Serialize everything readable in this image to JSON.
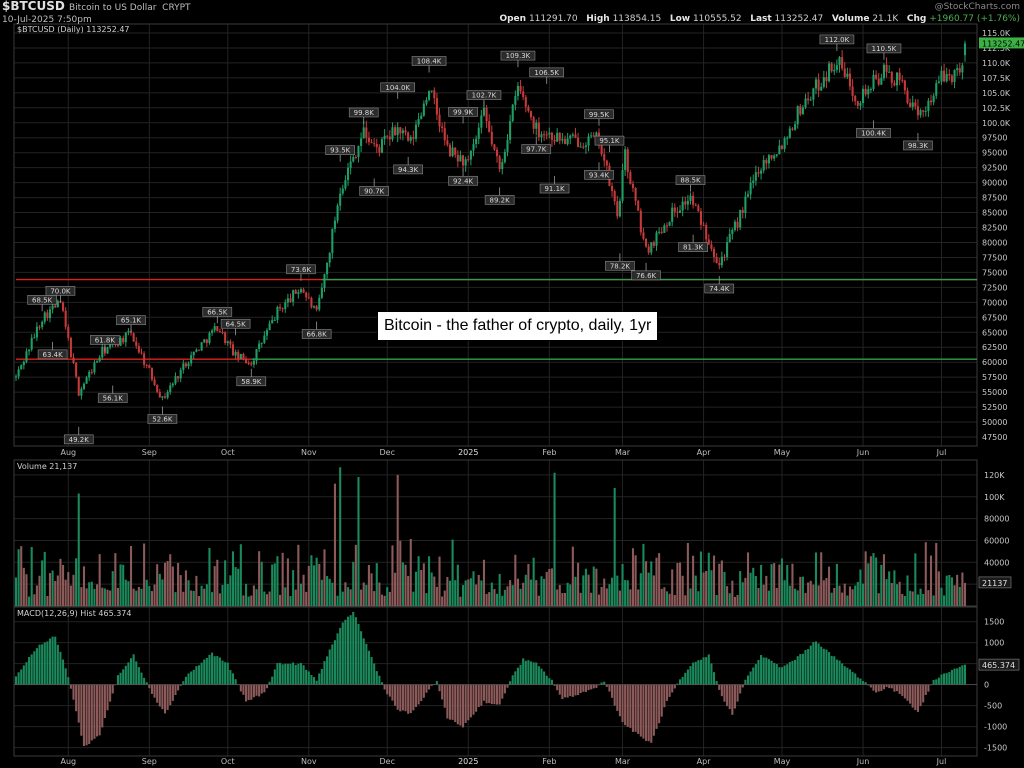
{
  "header": {
    "symbol": "$BTCUSD",
    "description": "Bitcoin to US Dollar",
    "exchange": "CRYPT",
    "datetime": "10-Jul-2025 7:50pm",
    "source": "@StockCharts.com",
    "open_label": "Open",
    "open": "111291.70",
    "high_label": "High",
    "high": "113854.15",
    "low_label": "Low",
    "low": "110555.52",
    "last_label": "Last",
    "last": "113252.47",
    "volume_label": "Volume",
    "volume": "21.1K",
    "chg_label": "Chg",
    "chg": "+1960.77 (+1.76%)"
  },
  "annotation": "Bitcoin - the father of crypto, daily, 1yr",
  "colors": {
    "up": "#1f9e66",
    "down": "#c63a3a",
    "up_vol": "#1a8a5c",
    "down_vol": "#8d5a5a",
    "hline_red": "#e02020",
    "hline_green": "#2aa24a",
    "grid": "#232323",
    "price_label_bg": "#ffffff",
    "last_tag_bg": "#3cb043"
  },
  "chart_data": [
    {
      "type": "candlestick",
      "panel": "price",
      "legend": "$BTCUSD (Daily) 113252.47",
      "last_label": "113252.47",
      "x_labels": [
        "Aug",
        "Sep",
        "Oct",
        "Nov",
        "Dec",
        "2025",
        "Feb",
        "Mar",
        "Apr",
        "May",
        "Jun",
        "Jul"
      ],
      "x_label_dates": [
        "2024-08-01",
        "2024-09-01",
        "2024-10-01",
        "2024-11-01",
        "2024-12-01",
        "2025-01-01",
        "2025-02-01",
        "2025-03-01",
        "2025-04-01",
        "2025-05-01",
        "2025-06-01",
        "2025-07-01"
      ],
      "date_range": [
        "2024-07-12",
        "2025-07-10"
      ],
      "ylim": [
        46000,
        116500
      ],
      "y_ticks": [
        47500,
        50000,
        52500,
        55000,
        57500,
        60000,
        62500,
        65000,
        67500,
        70000,
        72500,
        75000,
        77500,
        80000,
        82500,
        85000,
        87500,
        90000,
        92500,
        95000,
        97500,
        100000,
        102500,
        105000,
        107500,
        110000,
        112500,
        115000
      ],
      "y_tick_labels": [
        "47500",
        "50000",
        "52500",
        "55000",
        "57500",
        "60000",
        "62500",
        "65000",
        "67500",
        "70000",
        "72500",
        "75000",
        "77500",
        "80000",
        "82500",
        "85000",
        "87500",
        "90000",
        "92500",
        "95000",
        "97500",
        "100.0K",
        "102.5K",
        "105.0K",
        "107.5K",
        "110.0K",
        "112.5K",
        "115.0K"
      ],
      "approx_close_path": [
        [
          "2024-07-12",
          57500
        ],
        [
          "2024-07-22",
          67500
        ],
        [
          "2024-07-29",
          70000
        ],
        [
          "2024-08-05",
          55000
        ],
        [
          "2024-08-14",
          61800
        ],
        [
          "2024-08-25",
          64800
        ],
        [
          "2024-09-06",
          53800
        ],
        [
          "2024-09-15",
          60000
        ],
        [
          "2024-09-27",
          66000
        ],
        [
          "2024-10-04",
          61000
        ],
        [
          "2024-10-10",
          60000
        ],
        [
          "2024-10-20",
          68500
        ],
        [
          "2024-10-29",
          72500
        ],
        [
          "2024-11-04",
          68000
        ],
        [
          "2024-11-08",
          76500
        ],
        [
          "2024-11-13",
          89000
        ],
        [
          "2024-11-22",
          98500
        ],
        [
          "2024-11-27",
          95500
        ],
        [
          "2024-12-05",
          99000
        ],
        [
          "2024-12-10",
          96500
        ],
        [
          "2024-12-17",
          106000
        ],
        [
          "2024-12-24",
          95500
        ],
        [
          "2025-01-01",
          93000
        ],
        [
          "2025-01-07",
          101500
        ],
        [
          "2025-01-13",
          92000
        ],
        [
          "2025-01-20",
          106000
        ],
        [
          "2025-01-27",
          99000
        ],
        [
          "2025-02-07",
          97000
        ],
        [
          "2025-02-20",
          97200
        ],
        [
          "2025-02-27",
          84500
        ],
        [
          "2025-03-02",
          94500
        ],
        [
          "2025-03-10",
          78500
        ],
        [
          "2025-03-20",
          85000
        ],
        [
          "2025-03-27",
          87500
        ],
        [
          "2025-04-07",
          76500
        ],
        [
          "2025-04-15",
          84500
        ],
        [
          "2025-04-22",
          92500
        ],
        [
          "2025-05-01",
          96500
        ],
        [
          "2025-05-08",
          102500
        ],
        [
          "2025-05-22",
          110500
        ],
        [
          "2025-05-30",
          104000
        ],
        [
          "2025-06-09",
          108500
        ],
        [
          "2025-06-16",
          106500
        ],
        [
          "2025-06-22",
          100500
        ],
        [
          "2025-07-01",
          107500
        ],
        [
          "2025-07-08",
          108500
        ],
        [
          "2025-07-10",
          113250
        ]
      ],
      "pivot_labels": [
        {
          "date": "2024-07-22",
          "text": "68.5K",
          "value": 68500,
          "pos": "above"
        },
        {
          "date": "2024-07-29",
          "text": "70.0K",
          "value": 70000,
          "pos": "above"
        },
        {
          "date": "2024-07-26",
          "text": "63.4K",
          "value": 63400,
          "pos": "below"
        },
        {
          "date": "2024-08-05",
          "text": "49.2K",
          "value": 49200,
          "pos": "below"
        },
        {
          "date": "2024-08-15",
          "text": "61.8K",
          "value": 61800,
          "pos": "above"
        },
        {
          "date": "2024-08-18",
          "text": "56.1K",
          "value": 56100,
          "pos": "below"
        },
        {
          "date": "2024-08-25",
          "text": "65.1K",
          "value": 65100,
          "pos": "above"
        },
        {
          "date": "2024-09-06",
          "text": "52.6K",
          "value": 52600,
          "pos": "below"
        },
        {
          "date": "2024-09-27",
          "text": "66.5K",
          "value": 66500,
          "pos": "above"
        },
        {
          "date": "2024-10-04",
          "text": "64.5K",
          "value": 64500,
          "pos": "above"
        },
        {
          "date": "2024-10-10",
          "text": "58.9K",
          "value": 58900,
          "pos": "below"
        },
        {
          "date": "2024-10-29",
          "text": "73.6K",
          "value": 73600,
          "pos": "above"
        },
        {
          "date": "2024-11-04",
          "text": "66.8K",
          "value": 66800,
          "pos": "below"
        },
        {
          "date": "2024-11-13",
          "text": "93.5K",
          "value": 93500,
          "pos": "above"
        },
        {
          "date": "2024-11-22",
          "text": "99.8K",
          "value": 99800,
          "pos": "above"
        },
        {
          "date": "2024-11-26",
          "text": "90.7K",
          "value": 90700,
          "pos": "below"
        },
        {
          "date": "2024-12-05",
          "text": "104.0K",
          "value": 104000,
          "pos": "above"
        },
        {
          "date": "2024-12-09",
          "text": "94.3K",
          "value": 94300,
          "pos": "below"
        },
        {
          "date": "2024-12-17",
          "text": "108.4K",
          "value": 108400,
          "pos": "above"
        },
        {
          "date": "2024-12-30",
          "text": "99.9K",
          "value": 99900,
          "pos": "above"
        },
        {
          "date": "2024-12-30",
          "text": "92.4K",
          "value": 92400,
          "pos": "below"
        },
        {
          "date": "2025-01-07",
          "text": "102.7K",
          "value": 102700,
          "pos": "above"
        },
        {
          "date": "2025-01-13",
          "text": "89.2K",
          "value": 89200,
          "pos": "below"
        },
        {
          "date": "2025-01-20",
          "text": "109.3K",
          "value": 109300,
          "pos": "above"
        },
        {
          "date": "2025-01-31",
          "text": "106.5K",
          "value": 106500,
          "pos": "above"
        },
        {
          "date": "2025-01-27",
          "text": "97.7K",
          "value": 97700,
          "pos": "below"
        },
        {
          "date": "2025-02-03",
          "text": "91.1K",
          "value": 91100,
          "pos": "below"
        },
        {
          "date": "2025-02-20",
          "text": "99.5K",
          "value": 99500,
          "pos": "above"
        },
        {
          "date": "2025-02-24",
          "text": "95.1K",
          "value": 95100,
          "pos": "above"
        },
        {
          "date": "2025-02-20",
          "text": "93.4K",
          "value": 93400,
          "pos": "below"
        },
        {
          "date": "2025-02-28",
          "text": "78.2K",
          "value": 78200,
          "pos": "below"
        },
        {
          "date": "2025-03-10",
          "text": "76.6K",
          "value": 76600,
          "pos": "below"
        },
        {
          "date": "2025-03-27",
          "text": "88.5K",
          "value": 88500,
          "pos": "above"
        },
        {
          "date": "2025-03-28",
          "text": "81.3K",
          "value": 81300,
          "pos": "below"
        },
        {
          "date": "2025-04-07",
          "text": "74.4K",
          "value": 74400,
          "pos": "below"
        },
        {
          "date": "2025-05-22",
          "text": "112.0K",
          "value": 112000,
          "pos": "above"
        },
        {
          "date": "2025-06-09",
          "text": "110.5K",
          "value": 110500,
          "pos": "above"
        },
        {
          "date": "2025-06-05",
          "text": "100.4K",
          "value": 100400,
          "pos": "below"
        },
        {
          "date": "2025-06-22",
          "text": "98.3K",
          "value": 98300,
          "pos": "below"
        }
      ],
      "horizontal_lines": [
        {
          "value": 73800,
          "color": "red",
          "start": "2024-07-12"
        },
        {
          "value": 73800,
          "color": "green",
          "start": "2024-11-06"
        },
        {
          "value": 60500,
          "color": "red",
          "start": "2024-07-12",
          "end": "2024-10-10"
        },
        {
          "value": 60500,
          "color": "green",
          "start": "2024-10-10"
        }
      ]
    },
    {
      "type": "bar",
      "panel": "volume",
      "legend": "Volume 21,137",
      "last_label": "21137",
      "ylim": [
        0,
        130000
      ],
      "y_ticks": [
        20000,
        40000,
        60000,
        80000,
        100000,
        120000
      ],
      "y_tick_labels": [
        "20000",
        "40000",
        "60000",
        "80000",
        "100K",
        "120K"
      ],
      "notable_spikes": [
        [
          "2024-08-05",
          103000
        ],
        [
          "2024-11-11",
          112000
        ],
        [
          "2024-11-13",
          127000
        ],
        [
          "2024-11-20",
          118000
        ],
        [
          "2024-12-05",
          120000
        ],
        [
          "2025-02-03",
          122000
        ],
        [
          "2025-02-26",
          108000
        ],
        [
          "2025-07-10",
          21137
        ]
      ]
    },
    {
      "type": "histogram",
      "panel": "macd",
      "legend": "MACD(12,26,9) Hist 465.374",
      "last_label": "465.374",
      "ylim": [
        -1700,
        1850
      ],
      "y_ticks": [
        -1500,
        -1000,
        -500,
        0,
        500,
        1000,
        1500
      ],
      "y_tick_labels": [
        "-1500",
        "-1000",
        "-500",
        "0",
        "500",
        "1000",
        "1500"
      ],
      "approx_path": [
        [
          "2024-07-12",
          200
        ],
        [
          "2024-07-20",
          900
        ],
        [
          "2024-07-27",
          1150
        ],
        [
          "2024-08-01",
          200
        ],
        [
          "2024-08-07",
          -1480
        ],
        [
          "2024-08-13",
          -1200
        ],
        [
          "2024-08-20",
          200
        ],
        [
          "2024-08-26",
          700
        ],
        [
          "2024-09-02",
          -200
        ],
        [
          "2024-09-07",
          -700
        ],
        [
          "2024-09-15",
          200
        ],
        [
          "2024-09-25",
          750
        ],
        [
          "2024-10-01",
          500
        ],
        [
          "2024-10-08",
          -400
        ],
        [
          "2024-10-15",
          -200
        ],
        [
          "2024-10-20",
          500
        ],
        [
          "2024-10-29",
          500
        ],
        [
          "2024-11-04",
          100
        ],
        [
          "2024-11-08",
          700
        ],
        [
          "2024-11-14",
          1450
        ],
        [
          "2024-11-18",
          1750
        ],
        [
          "2024-11-24",
          800
        ],
        [
          "2024-11-30",
          -100
        ],
        [
          "2024-12-05",
          -600
        ],
        [
          "2024-12-10",
          -700
        ],
        [
          "2024-12-15",
          -300
        ],
        [
          "2024-12-20",
          100
        ],
        [
          "2024-12-24",
          -800
        ],
        [
          "2024-12-30",
          -1000
        ],
        [
          "2025-01-07",
          -400
        ],
        [
          "2025-01-13",
          -500
        ],
        [
          "2025-01-17",
          100
        ],
        [
          "2025-01-22",
          600
        ],
        [
          "2025-01-27",
          500
        ],
        [
          "2025-02-02",
          100
        ],
        [
          "2025-02-06",
          -350
        ],
        [
          "2025-02-18",
          -100
        ],
        [
          "2025-02-22",
          100
        ],
        [
          "2025-03-01",
          -900
        ],
        [
          "2025-03-07",
          -1200
        ],
        [
          "2025-03-12",
          -1400
        ],
        [
          "2025-03-18",
          -400
        ],
        [
          "2025-03-23",
          100
        ],
        [
          "2025-03-28",
          500
        ],
        [
          "2025-04-03",
          700
        ],
        [
          "2025-04-08",
          -300
        ],
        [
          "2025-04-12",
          -700
        ],
        [
          "2025-04-17",
          100
        ],
        [
          "2025-04-23",
          700
        ],
        [
          "2025-05-01",
          400
        ],
        [
          "2025-05-08",
          700
        ],
        [
          "2025-05-14",
          1050
        ],
        [
          "2025-05-20",
          700
        ],
        [
          "2025-05-28",
          300
        ],
        [
          "2025-06-02",
          50
        ],
        [
          "2025-06-06",
          -200
        ],
        [
          "2025-06-10",
          -50
        ],
        [
          "2025-06-16",
          -250
        ],
        [
          "2025-06-22",
          -650
        ],
        [
          "2025-06-28",
          100
        ],
        [
          "2025-07-03",
          300
        ],
        [
          "2025-07-09",
          450
        ],
        [
          "2025-07-10",
          465.374
        ]
      ]
    }
  ]
}
